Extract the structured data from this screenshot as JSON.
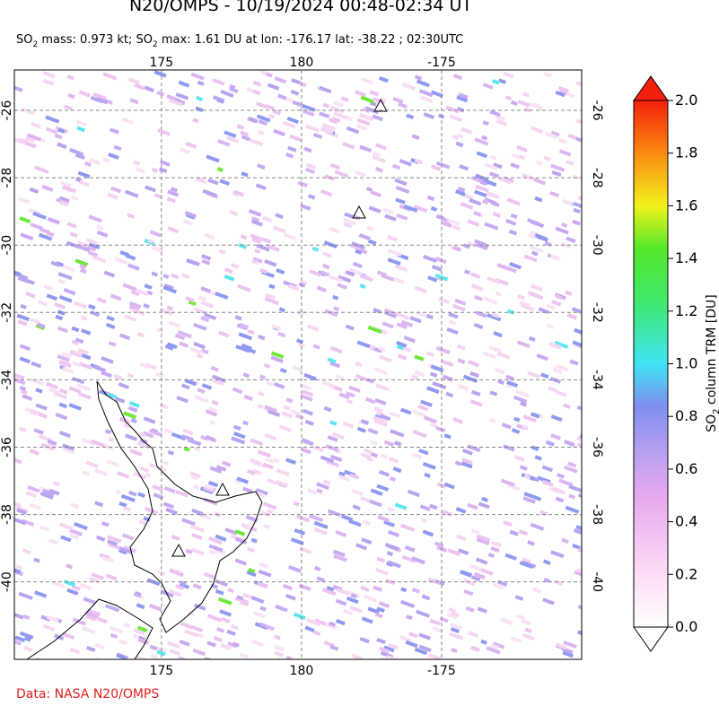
{
  "header": {
    "title": "N20/OMPS - 10/19/2024 00:48-02:34 UT",
    "subtitle": [
      "SO",
      "2",
      " mass: 0.973 kt; SO",
      "2",
      " max: 1.61 DU at lon: -176.17 lat: -38.22 ; 02:30UTC"
    ]
  },
  "map": {
    "xlim": [
      169.75,
      -170
    ],
    "ylim": [
      -42.3,
      -24.8
    ],
    "xticks": [
      175,
      180,
      -175
    ],
    "yticks": [
      -26,
      -28,
      -30,
      -32,
      -34,
      -36,
      -38,
      -40
    ]
  },
  "colorbar": {
    "label": [
      "SO",
      "2",
      " column TRM [DU]"
    ],
    "range": [
      0,
      2
    ],
    "ticks": [
      {
        "value": 0,
        "label": "0.0"
      },
      {
        "value": 0.2,
        "label": "0.2"
      },
      {
        "value": 0.4,
        "label": "0.4"
      },
      {
        "value": 0.6,
        "label": "0.6"
      },
      {
        "value": 0.8,
        "label": "0.8"
      },
      {
        "value": 1,
        "label": "1.0"
      },
      {
        "value": 1.2,
        "label": "1.2"
      },
      {
        "value": 1.4,
        "label": "1.4"
      },
      {
        "value": 1.6,
        "label": "1.6"
      },
      {
        "value": 1.8,
        "label": "1.8"
      },
      {
        "value": 2,
        "label": "2.0"
      }
    ]
  },
  "footer": {
    "credit": "Data: NASA N20/OMPS"
  }
}
